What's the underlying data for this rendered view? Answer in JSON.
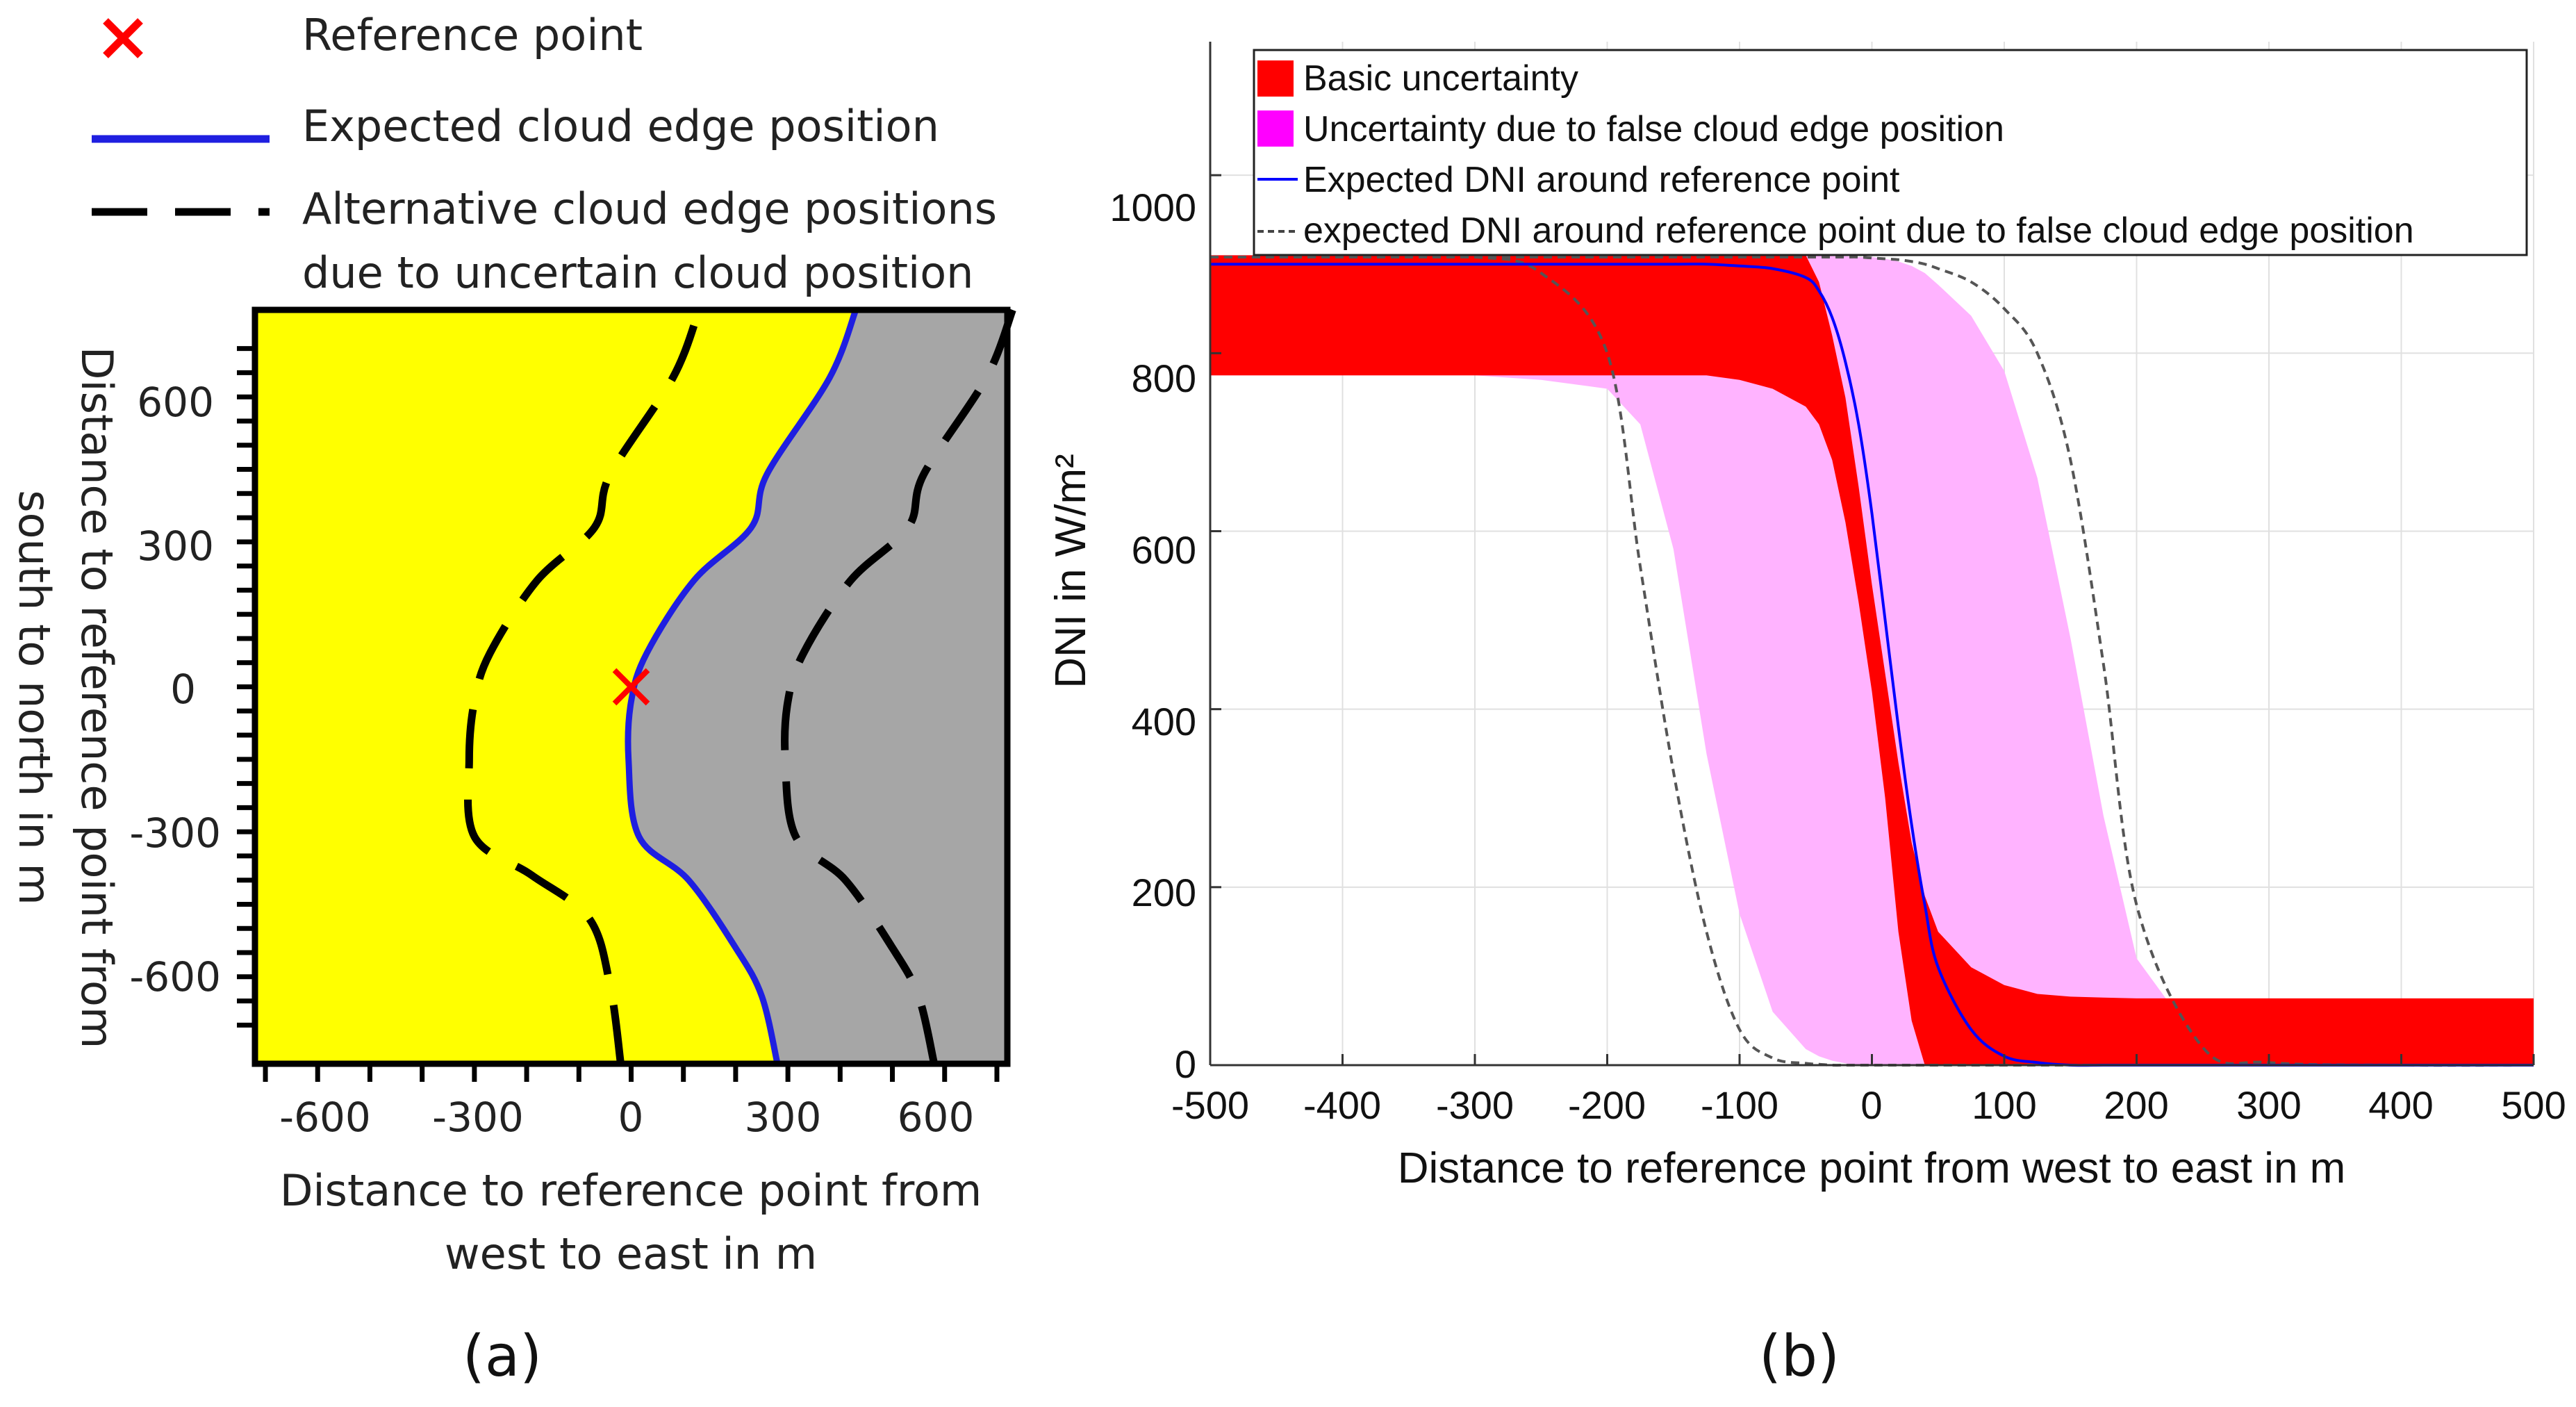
{
  "panel_a": {
    "caption": "(a)",
    "legend": {
      "reference_point": "Reference point",
      "expected_edge": "Expected cloud edge position",
      "alternative_edge_line1": "Alternative cloud edge positions",
      "alternative_edge_line2": "due to uncertain cloud position"
    },
    "xlabel_line1": "Distance to reference point from",
    "xlabel_line2": "west to east in m",
    "ylabel_line1": "Distance to reference point from",
    "ylabel_line2": "south to north in m",
    "x_ticks": [
      "-600",
      "-300",
      "0",
      "300",
      "600"
    ],
    "y_ticks": [
      "600",
      "300",
      "0",
      "-300",
      "-600"
    ]
  },
  "panel_b": {
    "caption": "(b)",
    "legend": {
      "basic": "Basic uncertainty",
      "false_edge": "Uncertainty due to false cloud edge position",
      "expected": "Expected DNI around reference point",
      "expected_false": "expected DNI around reference point due to false cloud edge position"
    },
    "x_ticks": [
      "-500",
      "-400",
      "-300",
      "-200",
      "-100",
      "0",
      "100",
      "200",
      "300",
      "400",
      "500"
    ],
    "y_ticks": [
      "0",
      "200",
      "400",
      "600",
      "800",
      "1000"
    ]
  },
  "chart_data": [
    {
      "type": "contour-map",
      "title": "",
      "xlabel": "Distance to reference point from west to east in m",
      "ylabel": "Distance to reference point from south to north in m",
      "xlim": [
        -720,
        720
      ],
      "ylim": [
        -780,
        780
      ],
      "colors": {
        "clear": "#ffff00",
        "cloud": "#a6a6a6",
        "expected_edge": "#1f1fe0",
        "alternative": "#000000",
        "marker": "#ff0000"
      },
      "reference_point": {
        "x": 0,
        "y": 0
      },
      "expected_edge": {
        "points": [
          [
            280,
            -780
          ],
          [
            250,
            -640
          ],
          [
            200,
            -540
          ],
          [
            110,
            -400
          ],
          [
            15,
            -310
          ],
          [
            -5,
            -150
          ],
          [
            0,
            -30
          ],
          [
            30,
            70
          ],
          [
            120,
            220
          ],
          [
            230,
            330
          ],
          [
            260,
            440
          ],
          [
            380,
            640
          ],
          [
            430,
            780
          ]
        ]
      },
      "alternative_edges": [
        {
          "name": "west",
          "points": [
            [
              -20,
              -780
            ],
            [
              -40,
              -620
            ],
            [
              -80,
              -480
            ],
            [
              -190,
              -390
            ],
            [
              -300,
              -310
            ],
            [
              -310,
              -150
            ],
            [
              -300,
              -30
            ],
            [
              -270,
              70
            ],
            [
              -180,
              220
            ],
            [
              -70,
              330
            ],
            [
              -40,
              440
            ],
            [
              80,
              640
            ],
            [
              130,
              780
            ]
          ]
        },
        {
          "name": "east",
          "points": [
            [
              580,
              -780
            ],
            [
              550,
              -640
            ],
            [
              500,
              -540
            ],
            [
              410,
              -400
            ],
            [
              315,
              -310
            ],
            [
              295,
              -150
            ],
            [
              300,
              -30
            ],
            [
              330,
              70
            ],
            [
              420,
              220
            ],
            [
              530,
              330
            ],
            [
              560,
              440
            ],
            [
              680,
              640
            ],
            [
              730,
              780
            ]
          ]
        }
      ]
    },
    {
      "type": "area",
      "title": "",
      "xlabel": "Distance to reference point from west to east in m",
      "ylabel": "DNI in W/m²",
      "xlim": [
        -500,
        500
      ],
      "ylim": [
        0,
        1150
      ],
      "grid": true,
      "legend_position": "top",
      "x": [
        -500,
        -400,
        -300,
        -250,
        -200,
        -175,
        -150,
        -125,
        -100,
        -75,
        -50,
        -40,
        -30,
        -20,
        -10,
        0,
        10,
        20,
        30,
        40,
        50,
        75,
        100,
        125,
        150,
        175,
        200,
        250,
        300,
        400,
        500
      ],
      "series": [
        {
          "name": "Uncertainty due to false cloud edge position (upper)",
          "color": "#ffb3ff",
          "values": [
            910,
            910,
            910,
            910,
            910,
            910,
            910,
            910,
            910,
            910,
            910,
            910,
            909,
            909,
            908,
            908,
            906,
            903,
            898,
            890,
            877,
            842,
            780,
            660,
            480,
            280,
            120,
            18,
            3,
            0,
            0
          ]
        },
        {
          "name": "Uncertainty due to false cloud edge position (lower)",
          "color": "#ffb3ff",
          "values": [
            775,
            775,
            775,
            770,
            760,
            720,
            580,
            350,
            170,
            60,
            18,
            10,
            5,
            2,
            0,
            0,
            0,
            0,
            0,
            0,
            0,
            0,
            0,
            0,
            0,
            0,
            0,
            0,
            0,
            0,
            0
          ]
        },
        {
          "name": "Basic uncertainty (upper)",
          "color": "#ff0000",
          "values": [
            910,
            910,
            910,
            910,
            910,
            910,
            910,
            910,
            910,
            910,
            910,
            880,
            820,
            750,
            650,
            540,
            440,
            340,
            250,
            190,
            150,
            110,
            90,
            80,
            77,
            76,
            75,
            75,
            75,
            75,
            75
          ]
        },
        {
          "name": "Basic uncertainty (lower)",
          "color": "#ff0000",
          "values": [
            775,
            775,
            775,
            775,
            775,
            775,
            775,
            775,
            770,
            760,
            740,
            720,
            680,
            610,
            520,
            420,
            300,
            150,
            50,
            0,
            0,
            0,
            0,
            0,
            0,
            0,
            0,
            0,
            0,
            0,
            0
          ]
        },
        {
          "name": "Expected DNI around reference point",
          "color": "#0000ff",
          "values": [
            900,
            900,
            900,
            900,
            900,
            900,
            900,
            900,
            898,
            895,
            885,
            870,
            840,
            790,
            720,
            620,
            500,
            380,
            270,
            180,
            110,
            40,
            10,
            3,
            0,
            0,
            0,
            0,
            0,
            0,
            0
          ]
        },
        {
          "name": "expected DNI around reference point due to false cloud edge position (east)",
          "color": "#555555",
          "values": [
            908,
            908,
            908,
            908,
            908,
            908,
            908,
            908,
            908,
            908,
            908,
            908,
            908,
            908,
            908,
            907,
            906,
            905,
            903,
            900,
            895,
            880,
            850,
            800,
            680,
            450,
            180,
            20,
            3,
            0,
            0
          ]
        },
        {
          "name": "expected DNI around reference point due to false cloud edge position (west)",
          "color": "#555555",
          "values": [
            908,
            908,
            908,
            890,
            800,
            560,
            330,
            150,
            40,
            8,
            2,
            1,
            0,
            0,
            0,
            0,
            0,
            0,
            0,
            0,
            0,
            0,
            0,
            0,
            0,
            0,
            0,
            0,
            0,
            0,
            0
          ]
        }
      ]
    }
  ]
}
